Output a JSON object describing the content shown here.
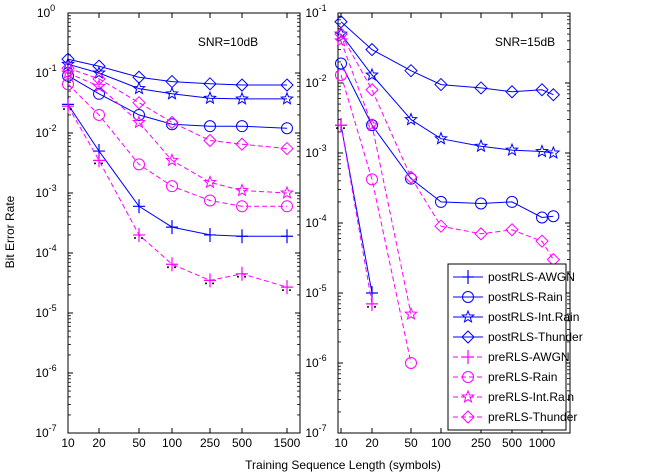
{
  "figure": {
    "ylabel": "Bit Error Rate",
    "xlabel": "Training Sequence Length (symbols)"
  },
  "colors": {
    "post": "#0000ff",
    "pre": "#ff00ff",
    "awgn_marker": "#000000"
  },
  "chart_data": [
    {
      "type": "line",
      "annotation": "SNR=10dB",
      "yscale": "log",
      "ylim": [
        1e-07,
        1
      ],
      "x_tick_labels": [
        "10",
        "20",
        "50",
        "100",
        "250",
        "500",
        "1500"
      ],
      "y_tick_labels": [
        {
          "base": "10",
          "exp": "-7"
        },
        {
          "base": "10",
          "exp": "-6"
        },
        {
          "base": "10",
          "exp": "-5"
        },
        {
          "base": "10",
          "exp": "-4"
        },
        {
          "base": "10",
          "exp": "-3"
        },
        {
          "base": "10",
          "exp": "-2"
        },
        {
          "base": "10",
          "exp": "-1"
        },
        {
          "base": "10",
          "exp": "0"
        }
      ],
      "grid": false,
      "series": [
        {
          "name": "postRLS-AWGN",
          "values": [
            0.03,
            0.005,
            0.0006,
            0.00027,
            0.0002,
            0.00019,
            0.00019
          ]
        },
        {
          "name": "postRLS-Rain",
          "values": [
            0.09,
            0.045,
            0.02,
            0.014,
            0.013,
            0.013,
            0.012
          ]
        },
        {
          "name": "postRLS-Int.Rain",
          "values": [
            0.14,
            0.1,
            0.055,
            0.045,
            0.038,
            0.037,
            0.037
          ]
        },
        {
          "name": "postRLS-Thunder",
          "values": [
            0.17,
            0.13,
            0.085,
            0.072,
            0.066,
            0.063,
            0.063
          ]
        },
        {
          "name": "preRLS-AWGN",
          "values": [
            0.028,
            0.0035,
            0.0002,
            6.5e-05,
            3.5e-05,
            4.5e-05,
            2.7e-05
          ]
        },
        {
          "name": "preRLS-Rain",
          "values": [
            0.065,
            0.02,
            0.003,
            0.0013,
            0.00075,
            0.0006,
            0.0006
          ]
        },
        {
          "name": "preRLS-Int.Rain",
          "values": [
            0.1,
            0.06,
            0.015,
            0.0035,
            0.0015,
            0.0011,
            0.001
          ]
        },
        {
          "name": "preRLS-Thunder",
          "values": [
            0.12,
            0.08,
            0.032,
            0.015,
            0.0075,
            0.0065,
            0.0055
          ]
        }
      ]
    },
    {
      "type": "line",
      "annotation": "SNR=15dB",
      "yscale": "log",
      "ylim": [
        1e-07,
        0.1
      ],
      "x_tick_labels": [
        "10",
        "20",
        "50",
        "100",
        "250",
        "500",
        "1000"
      ],
      "y_tick_labels": [
        {
          "base": "10",
          "exp": "-7"
        },
        {
          "base": "10",
          "exp": "-6"
        },
        {
          "base": "10",
          "exp": "-5"
        },
        {
          "base": "10",
          "exp": "-4"
        },
        {
          "base": "10",
          "exp": "-3"
        },
        {
          "base": "10",
          "exp": "-2"
        },
        {
          "base": "10",
          "exp": "-1"
        }
      ],
      "grid": false,
      "legend": "bottom-right",
      "series": [
        {
          "name": "postRLS-AWGN",
          "x": [
            10,
            20
          ],
          "values": [
            0.0025,
            1e-05
          ]
        },
        {
          "name": "postRLS-Rain",
          "x": [
            10,
            20,
            50,
            100,
            250,
            500,
            1000,
            1300
          ],
          "values": [
            0.019,
            0.0025,
            0.00043,
            0.0002,
            0.00019,
            0.0002,
            0.00012,
            0.000125
          ]
        },
        {
          "name": "postRLS-Int.Rain",
          "x": [
            10,
            20,
            50,
            100,
            250,
            500,
            1000,
            1300
          ],
          "values": [
            0.05,
            0.013,
            0.003,
            0.0016,
            0.00125,
            0.0011,
            0.00105,
            0.001
          ]
        },
        {
          "name": "postRLS-Thunder",
          "x": [
            10,
            20,
            50,
            100,
            250,
            500,
            1000,
            1300
          ],
          "values": [
            0.075,
            0.03,
            0.015,
            0.0095,
            0.0085,
            0.0075,
            0.008,
            0.0068
          ]
        },
        {
          "name": "preRLS-AWGN",
          "x": [
            10,
            20
          ],
          "values": [
            0.0025,
            7e-06
          ]
        },
        {
          "name": "preRLS-Rain",
          "x": [
            10,
            20,
            50
          ],
          "values": [
            0.013,
            0.00042,
            1e-06
          ]
        },
        {
          "name": "preRLS-Int.Rain",
          "x": [
            10,
            20,
            50
          ],
          "values": [
            0.04,
            0.0025,
            5e-06
          ]
        },
        {
          "name": "preRLS-Thunder",
          "x": [
            10,
            20,
            50,
            100,
            250,
            500,
            1000,
            1300
          ],
          "values": [
            0.05,
            0.008,
            0.00045,
            9e-05,
            7e-05,
            8e-05,
            5.5e-05,
            3e-05
          ]
        }
      ]
    }
  ]
}
